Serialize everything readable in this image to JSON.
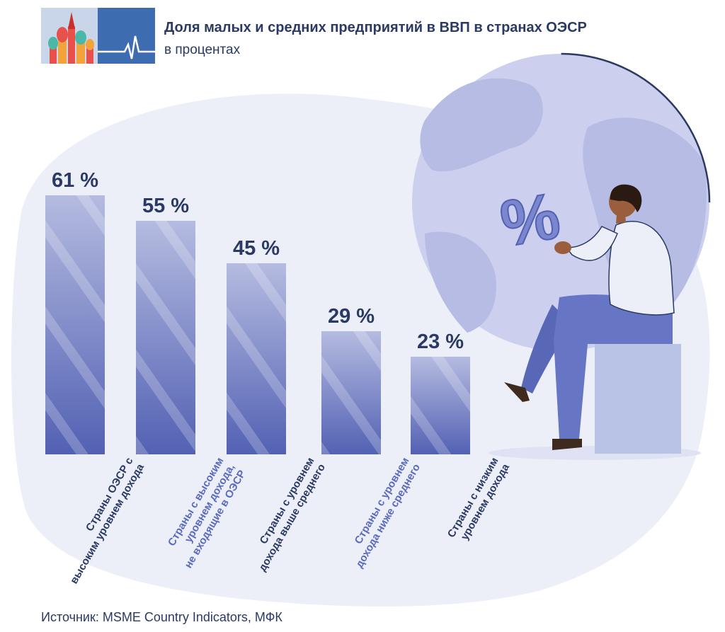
{
  "header": {
    "title": "Доля малых и средних предприятий в ВВП в странах ОЭСР",
    "subtitle": "в процентах"
  },
  "source": "Источник: MSME Country Indicators, МФК",
  "colors": {
    "text": "#2b3a63",
    "label_alt": "#5a6bbd",
    "blob": "#eceef8",
    "globe": "#ccd0ee",
    "globe_land": "#b7bce4",
    "bar_top": "#b5bbe0",
    "bar_bottom": "#5261b3"
  },
  "illustration": {
    "percent_symbol": "%",
    "logo_icon": "heartbeat-icon"
  },
  "chart_data": {
    "type": "bar",
    "title": "Доля малых и средних предприятий в ВВП в странах ОЭСР",
    "subtitle": "в процентах",
    "categories": [
      "Страны ОЭСР с высоким уровнем дохода",
      "Страны с высоким уровнем дохода, не входящие в ОЭСР",
      "Страны с уровнем дохода выше среднего",
      "Страны с уровнем дохода ниже среднего",
      "Страны с низким уровнем дохода"
    ],
    "category_lines": [
      [
        "Страны ОЭСР с",
        "высоким уровнем дохода"
      ],
      [
        "Страны с высоким",
        "уровнем дохода,",
        "не входящие в ОЭСР"
      ],
      [
        "Страны с уровнем",
        "дохода выше среднего"
      ],
      [
        "Страны с уровнем",
        "дохода ниже среднего"
      ],
      [
        "Страны с низким",
        "уровнем дохода"
      ]
    ],
    "category_colors": [
      "#2b3a63",
      "#5a6bbd",
      "#2b3a63",
      "#5a6bbd",
      "#2b3a63"
    ],
    "values": [
      61,
      55,
      45,
      29,
      23
    ],
    "value_labels": [
      "61 %",
      "55 %",
      "45 %",
      "29 %",
      "23 %"
    ],
    "ylim": [
      0,
      100
    ],
    "grid": false,
    "legend": "none"
  }
}
